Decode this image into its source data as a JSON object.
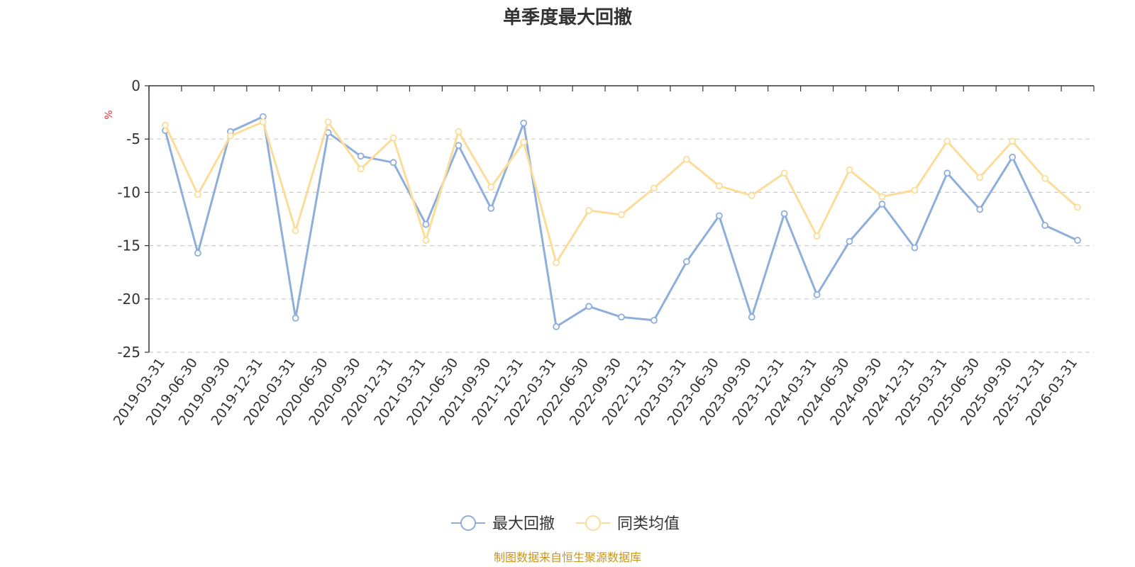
{
  "chart_data": {
    "type": "line",
    "title": "单季度最大回撤",
    "ylabel": "%",
    "xlabel": "",
    "ylim": [
      -25,
      0
    ],
    "yticks": [
      0,
      -5,
      -10,
      -15,
      -20,
      -25
    ],
    "grid": true,
    "legend_position": "bottom",
    "categories": [
      "2019-03-31",
      "2019-06-30",
      "2019-09-30",
      "2019-12-31",
      "2020-03-31",
      "2020-06-30",
      "2020-09-30",
      "2020-12-31",
      "2021-03-31",
      "2021-06-30",
      "2021-09-30",
      "2021-12-31",
      "2022-03-31",
      "2022-06-30",
      "2022-09-30",
      "2022-12-31",
      "2023-03-31",
      "2023-06-30",
      "2023-09-30",
      "2023-12-31",
      "2024-03-31",
      "2024-06-30",
      "2024-09-30",
      "2024-12-31",
      "2025-03-31",
      "2025-06-30",
      "2025-09-30",
      "2025-12-31",
      "2026-03-31"
    ],
    "series": [
      {
        "name": "最大回撤",
        "color": "#8eaedc",
        "values": [
          -4.2,
          -15.7,
          -4.3,
          -2.9,
          -21.8,
          -4.4,
          -6.6,
          -7.2,
          -13.0,
          -5.6,
          -11.5,
          -3.5,
          -22.6,
          -20.7,
          -21.7,
          -22.0,
          -16.5,
          -12.2,
          -21.7,
          -12.0,
          -19.6,
          -14.6,
          -11.1,
          -15.2,
          -8.2,
          -11.6,
          -6.7,
          -13.1,
          -14.5
        ]
      },
      {
        "name": "同类均值",
        "color": "#fbdd99",
        "values": [
          -3.7,
          -10.2,
          -4.7,
          -3.4,
          -13.6,
          -3.4,
          -7.8,
          -4.9,
          -14.5,
          -4.3,
          -9.5,
          -5.3,
          -16.6,
          -11.7,
          -12.1,
          -9.6,
          -6.9,
          -9.4,
          -10.3,
          -8.2,
          -14.1,
          -7.9,
          -10.4,
          -9.8,
          -5.2,
          -8.6,
          -5.2,
          -8.7,
          -11.4
        ]
      }
    ]
  },
  "source_text": "制图数据来自恒生聚源数据库",
  "colors": {
    "grid": "#cccccc",
    "axis": "#333333",
    "unit": "#e63030",
    "source": "#c8961e"
  }
}
